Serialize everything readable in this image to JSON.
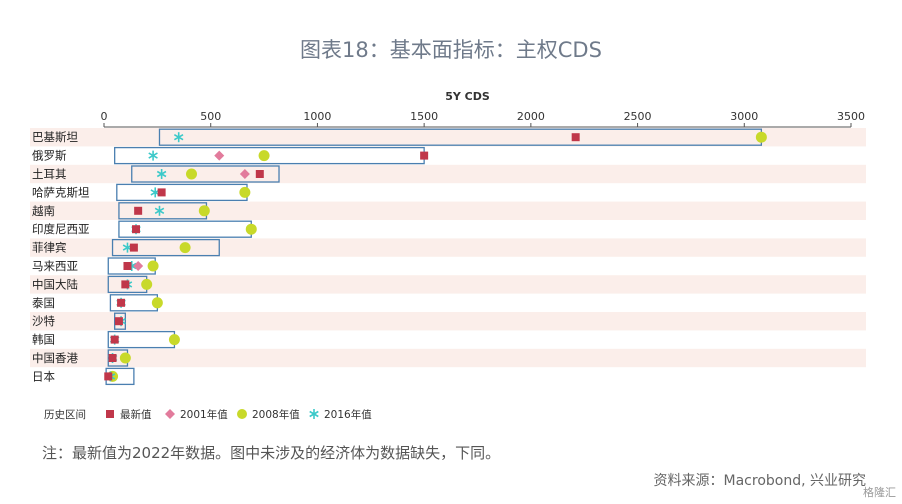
{
  "title": "图表18：基本面指标：主权CDS",
  "note": "注：最新值为2022年数据。图中未涉及的经济体为数据缺失，下同。",
  "source": "资料来源：Macrobond, 兴业研究",
  "watermark": "格隆汇",
  "colors": {
    "band": "#fbeeea",
    "range_box": "#4a7fb0",
    "latest": "#c0374a",
    "y2001": "#e27b9c",
    "y2008": "#c8d92a",
    "y2016": "#3cc9c9"
  },
  "chart_data": {
    "type": "range-dot",
    "xlabel": "5Y CDS",
    "xlim": [
      0,
      3500
    ],
    "xticks": [
      0,
      500,
      1000,
      1500,
      2000,
      2500,
      3000,
      3500
    ],
    "legend": {
      "range": "历史区间",
      "latest": "最新值",
      "y2001": "2001年值",
      "y2008": "2008年值",
      "y2016": "2016年值"
    },
    "rows": [
      {
        "name": "巴基斯坦",
        "min": 260,
        "max": 3080,
        "latest": 2210,
        "y2001": null,
        "y2008": 3080,
        "y2016": 350
      },
      {
        "name": "俄罗斯",
        "min": 50,
        "max": 1500,
        "latest": 1500,
        "y2001": 540,
        "y2008": 750,
        "y2016": 230
      },
      {
        "name": "土耳其",
        "min": 130,
        "max": 820,
        "latest": 730,
        "y2001": 660,
        "y2008": 410,
        "y2016": 270
      },
      {
        "name": "哈萨克斯坦",
        "min": 60,
        "max": 670,
        "latest": 270,
        "y2001": null,
        "y2008": 660,
        "y2016": 240
      },
      {
        "name": "越南",
        "min": 70,
        "max": 480,
        "latest": 160,
        "y2001": null,
        "y2008": 470,
        "y2016": 260
      },
      {
        "name": "印度尼西亚",
        "min": 70,
        "max": 690,
        "latest": 150,
        "y2001": null,
        "y2008": 690,
        "y2016": 150
      },
      {
        "name": "菲律宾",
        "min": 40,
        "max": 540,
        "latest": 140,
        "y2001": null,
        "y2008": 380,
        "y2016": 110
      },
      {
        "name": "马来西亚",
        "min": 20,
        "max": 240,
        "latest": 110,
        "y2001": 160,
        "y2008": 230,
        "y2016": 130
      },
      {
        "name": "中国大陆",
        "min": 20,
        "max": 200,
        "latest": 100,
        "y2001": null,
        "y2008": 200,
        "y2016": 110
      },
      {
        "name": "泰国",
        "min": 30,
        "max": 250,
        "latest": 80,
        "y2001": null,
        "y2008": 250,
        "y2016": 80
      },
      {
        "name": "沙特",
        "min": 50,
        "max": 100,
        "latest": 70,
        "y2001": null,
        "y2008": null,
        "y2016": 80
      },
      {
        "name": "韩国",
        "min": 20,
        "max": 330,
        "latest": 50,
        "y2001": null,
        "y2008": 330,
        "y2016": 50
      },
      {
        "name": "中国香港",
        "min": 20,
        "max": 110,
        "latest": 40,
        "y2001": null,
        "y2008": 100,
        "y2016": 40
      },
      {
        "name": "日本",
        "min": 10,
        "max": 140,
        "latest": 20,
        "y2001": null,
        "y2008": 40,
        "y2016": 30
      }
    ]
  }
}
